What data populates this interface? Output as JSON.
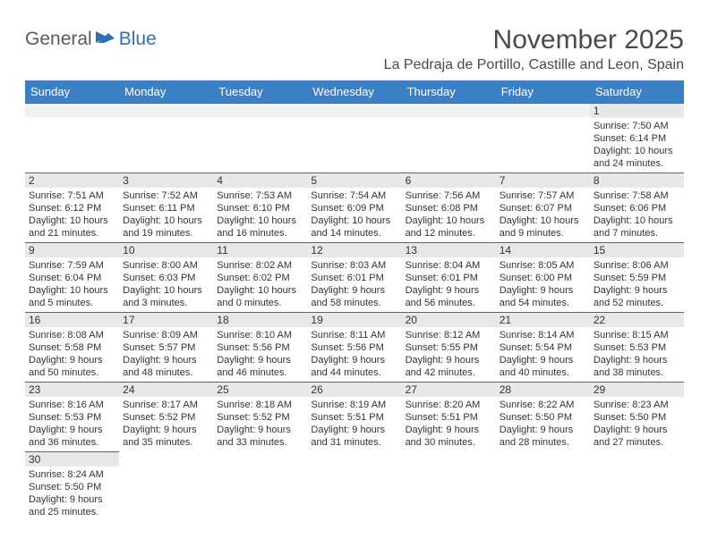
{
  "logo": {
    "part1": "General",
    "part2": "Blue"
  },
  "title": "November 2025",
  "location": "La Pedraja de Portillo, Castille and Leon, Spain",
  "colors": {
    "header_bg": "#3b7fc4",
    "header_fg": "#ffffff",
    "daynum_bg": "#e8e8e8",
    "rule": "#2f6fb0",
    "logo_gray": "#5a5a5a",
    "logo_blue": "#2f6fb0",
    "text": "#333333",
    "title_color": "#4a4a4a",
    "page_bg": "#ffffff"
  },
  "weekdays": [
    "Sunday",
    "Monday",
    "Tuesday",
    "Wednesday",
    "Thursday",
    "Friday",
    "Saturday"
  ],
  "weeks": [
    [
      null,
      null,
      null,
      null,
      null,
      null,
      {
        "n": "1",
        "sr": "7:50 AM",
        "ss": "6:14 PM",
        "dl": "10 hours and 24 minutes."
      }
    ],
    [
      {
        "n": "2",
        "sr": "7:51 AM",
        "ss": "6:12 PM",
        "dl": "10 hours and 21 minutes."
      },
      {
        "n": "3",
        "sr": "7:52 AM",
        "ss": "6:11 PM",
        "dl": "10 hours and 19 minutes."
      },
      {
        "n": "4",
        "sr": "7:53 AM",
        "ss": "6:10 PM",
        "dl": "10 hours and 16 minutes."
      },
      {
        "n": "5",
        "sr": "7:54 AM",
        "ss": "6:09 PM",
        "dl": "10 hours and 14 minutes."
      },
      {
        "n": "6",
        "sr": "7:56 AM",
        "ss": "6:08 PM",
        "dl": "10 hours and 12 minutes."
      },
      {
        "n": "7",
        "sr": "7:57 AM",
        "ss": "6:07 PM",
        "dl": "10 hours and 9 minutes."
      },
      {
        "n": "8",
        "sr": "7:58 AM",
        "ss": "6:06 PM",
        "dl": "10 hours and 7 minutes."
      }
    ],
    [
      {
        "n": "9",
        "sr": "7:59 AM",
        "ss": "6:04 PM",
        "dl": "10 hours and 5 minutes."
      },
      {
        "n": "10",
        "sr": "8:00 AM",
        "ss": "6:03 PM",
        "dl": "10 hours and 3 minutes."
      },
      {
        "n": "11",
        "sr": "8:02 AM",
        "ss": "6:02 PM",
        "dl": "10 hours and 0 minutes."
      },
      {
        "n": "12",
        "sr": "8:03 AM",
        "ss": "6:01 PM",
        "dl": "9 hours and 58 minutes."
      },
      {
        "n": "13",
        "sr": "8:04 AM",
        "ss": "6:01 PM",
        "dl": "9 hours and 56 minutes."
      },
      {
        "n": "14",
        "sr": "8:05 AM",
        "ss": "6:00 PM",
        "dl": "9 hours and 54 minutes."
      },
      {
        "n": "15",
        "sr": "8:06 AM",
        "ss": "5:59 PM",
        "dl": "9 hours and 52 minutes."
      }
    ],
    [
      {
        "n": "16",
        "sr": "8:08 AM",
        "ss": "5:58 PM",
        "dl": "9 hours and 50 minutes."
      },
      {
        "n": "17",
        "sr": "8:09 AM",
        "ss": "5:57 PM",
        "dl": "9 hours and 48 minutes."
      },
      {
        "n": "18",
        "sr": "8:10 AM",
        "ss": "5:56 PM",
        "dl": "9 hours and 46 minutes."
      },
      {
        "n": "19",
        "sr": "8:11 AM",
        "ss": "5:56 PM",
        "dl": "9 hours and 44 minutes."
      },
      {
        "n": "20",
        "sr": "8:12 AM",
        "ss": "5:55 PM",
        "dl": "9 hours and 42 minutes."
      },
      {
        "n": "21",
        "sr": "8:14 AM",
        "ss": "5:54 PM",
        "dl": "9 hours and 40 minutes."
      },
      {
        "n": "22",
        "sr": "8:15 AM",
        "ss": "5:53 PM",
        "dl": "9 hours and 38 minutes."
      }
    ],
    [
      {
        "n": "23",
        "sr": "8:16 AM",
        "ss": "5:53 PM",
        "dl": "9 hours and 36 minutes."
      },
      {
        "n": "24",
        "sr": "8:17 AM",
        "ss": "5:52 PM",
        "dl": "9 hours and 35 minutes."
      },
      {
        "n": "25",
        "sr": "8:18 AM",
        "ss": "5:52 PM",
        "dl": "9 hours and 33 minutes."
      },
      {
        "n": "26",
        "sr": "8:19 AM",
        "ss": "5:51 PM",
        "dl": "9 hours and 31 minutes."
      },
      {
        "n": "27",
        "sr": "8:20 AM",
        "ss": "5:51 PM",
        "dl": "9 hours and 30 minutes."
      },
      {
        "n": "28",
        "sr": "8:22 AM",
        "ss": "5:50 PM",
        "dl": "9 hours and 28 minutes."
      },
      {
        "n": "29",
        "sr": "8:23 AM",
        "ss": "5:50 PM",
        "dl": "9 hours and 27 minutes."
      }
    ],
    [
      {
        "n": "30",
        "sr": "8:24 AM",
        "ss": "5:50 PM",
        "dl": "9 hours and 25 minutes."
      },
      null,
      null,
      null,
      null,
      null,
      null
    ]
  ],
  "labels": {
    "sunrise": "Sunrise:",
    "sunset": "Sunset:",
    "daylight": "Daylight:"
  }
}
